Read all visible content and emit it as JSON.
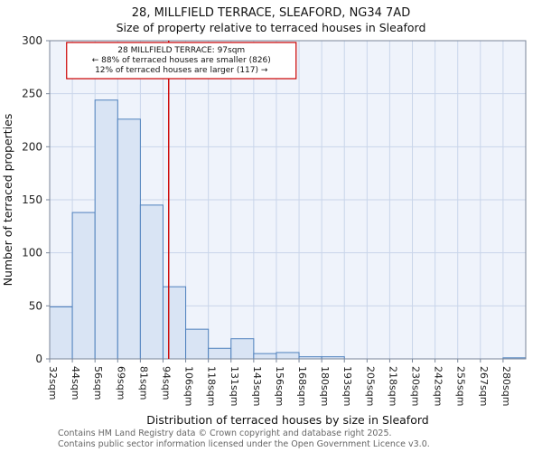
{
  "chart_data": {
    "type": "bar",
    "title": "28, MILLFIELD TERRACE, SLEAFORD, NG34 7AD",
    "subtitle": "Size of property relative to terraced houses in Sleaford",
    "xlabel": "Distribution of terraced houses by size in Sleaford",
    "ylabel": "Number of terraced properties",
    "categories": [
      "32sqm",
      "44sqm",
      "56sqm",
      "69sqm",
      "81sqm",
      "94sqm",
      "106sqm",
      "118sqm",
      "131sqm",
      "143sqm",
      "156sqm",
      "168sqm",
      "180sqm",
      "193sqm",
      "205sqm",
      "218sqm",
      "230sqm",
      "242sqm",
      "255sqm",
      "267sqm",
      "280sqm"
    ],
    "values": [
      49,
      138,
      244,
      226,
      145,
      68,
      28,
      10,
      19,
      5,
      6,
      2,
      2,
      0,
      0,
      0,
      0,
      0,
      0,
      0,
      1
    ],
    "ylim": [
      0,
      300
    ],
    "yticks": [
      0,
      50,
      100,
      150,
      200,
      250,
      300
    ],
    "grid": true,
    "legend": null,
    "marker": {
      "value_sqm": 97,
      "lines": [
        "28 MILLFIELD TERRACE: 97sqm",
        "← 88% of terraced houses are smaller (826)",
        "12% of terraced houses are larger (117) →"
      ],
      "color": "#cc0000"
    },
    "colors": {
      "bar_fill": "#d9e4f4",
      "bar_stroke": "#4f81bd",
      "plot_bg": "#eff3fb",
      "grid": "#c9d5ea",
      "axis": "#7a8699",
      "tick_text": "#222222"
    }
  },
  "footer": {
    "line1": "Contains HM Land Registry data © Crown copyright and database right 2025.",
    "line2": "Contains public sector information licensed under the Open Government Licence v3.0."
  }
}
